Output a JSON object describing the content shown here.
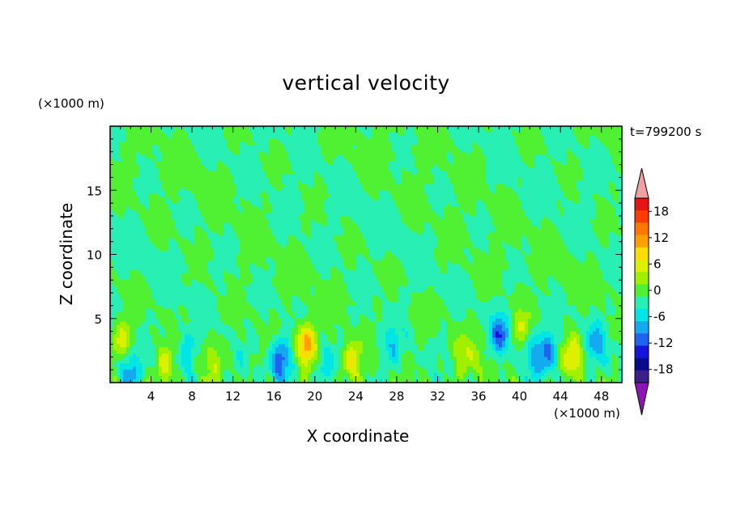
{
  "chart_data": {
    "type": "heatmap",
    "title": "vertical velocity",
    "xlabel": "X coordinate",
    "ylabel": "Z coordinate",
    "x_multiplier_label": "(×1000 m)",
    "y_multiplier_label": "(×1000 m)",
    "time_label": "t=799200 s",
    "xlim": [
      0,
      50
    ],
    "ylim": [
      0,
      20
    ],
    "x_ticks": [
      4,
      8,
      12,
      16,
      20,
      24,
      28,
      32,
      36,
      40,
      44,
      48
    ],
    "y_ticks": [
      5,
      10,
      15
    ],
    "colorbar": {
      "levels": [
        -21,
        -18,
        -15,
        -12,
        -9,
        -6,
        -3,
        0,
        3,
        6,
        9,
        12,
        15,
        18,
        21
      ],
      "tick_labels": [
        "18",
        "12",
        "6",
        "0",
        "-6",
        "-12",
        "-18"
      ],
      "tick_values": [
        18,
        12,
        6,
        0,
        -6,
        -12,
        -18
      ],
      "colors": [
        "#3c1e8c",
        "#0a0a8c",
        "#1414dc",
        "#1e64f0",
        "#14aaf0",
        "#00e6e6",
        "#28f0b4",
        "#50f032",
        "#a0f000",
        "#dcf000",
        "#ffdc00",
        "#ffa000",
        "#ff7800",
        "#ff3c00",
        "#e61414"
      ],
      "under_color": "#8c14b4",
      "over_color": "#f0a0a0"
    },
    "updraft_centers": [
      {
        "x": 1.3,
        "z": 3.2,
        "w": 8
      },
      {
        "x": 5.4,
        "z": 1.3,
        "w": 7
      },
      {
        "x": 10.0,
        "z": 1.6,
        "w": 4
      },
      {
        "x": 19.2,
        "z": 3.0,
        "w": 15
      },
      {
        "x": 23.6,
        "z": 1.6,
        "w": 9
      },
      {
        "x": 34.5,
        "z": 2.2,
        "w": 5
      },
      {
        "x": 36.4,
        "z": 1.4,
        "w": 3
      },
      {
        "x": 40.2,
        "z": 4.2,
        "w": 5
      },
      {
        "x": 45.3,
        "z": 2.0,
        "w": 9
      }
    ],
    "downdraft_centers": [
      {
        "x": 1.8,
        "z": 1.0,
        "w": -9
      },
      {
        "x": 7.5,
        "z": 2.6,
        "w": -5
      },
      {
        "x": 16.7,
        "z": 1.8,
        "w": -12
      },
      {
        "x": 20.8,
        "z": 1.4,
        "w": -5
      },
      {
        "x": 27.5,
        "z": 2.8,
        "w": -5
      },
      {
        "x": 38.1,
        "z": 3.8,
        "w": -10
      },
      {
        "x": 41.3,
        "z": 2.2,
        "w": -6
      },
      {
        "x": 42.8,
        "z": 2.5,
        "w": -9
      },
      {
        "x": 47.5,
        "z": 3.0,
        "w": -7
      }
    ]
  }
}
